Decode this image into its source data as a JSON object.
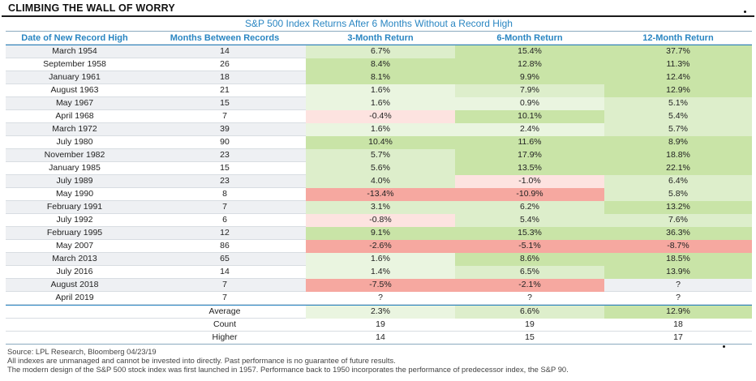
{
  "page_title": "CLIMBING THE WALL OF WORRY",
  "table_title": "S&P 500 Index Returns After 6 Months Without a Record High",
  "columns": [
    "Date of New Record High",
    "Months Between Records",
    "3-Month Return",
    "6-Month Return",
    "12-Month Return"
  ],
  "rows": [
    {
      "date": "March 1954",
      "months": "14",
      "r3": "6.7%",
      "r6": "15.4%",
      "r12": "37.7%"
    },
    {
      "date": "September 1958",
      "months": "26",
      "r3": "8.4%",
      "r6": "12.8%",
      "r12": "11.3%"
    },
    {
      "date": "January 1961",
      "months": "18",
      "r3": "8.1%",
      "r6": "9.9%",
      "r12": "12.4%"
    },
    {
      "date": "August 1963",
      "months": "21",
      "r3": "1.6%",
      "r6": "7.9%",
      "r12": "12.9%"
    },
    {
      "date": "May 1967",
      "months": "15",
      "r3": "1.6%",
      "r6": "0.9%",
      "r12": "5.1%"
    },
    {
      "date": "April 1968",
      "months": "7",
      "r3": "-0.4%",
      "r6": "10.1%",
      "r12": "5.4%"
    },
    {
      "date": "March 1972",
      "months": "39",
      "r3": "1.6%",
      "r6": "2.4%",
      "r12": "5.7%"
    },
    {
      "date": "July 1980",
      "months": "90",
      "r3": "10.4%",
      "r6": "11.6%",
      "r12": "8.9%"
    },
    {
      "date": "November 1982",
      "months": "23",
      "r3": "5.7%",
      "r6": "17.9%",
      "r12": "18.8%"
    },
    {
      "date": "January 1985",
      "months": "15",
      "r3": "5.6%",
      "r6": "13.5%",
      "r12": "22.1%"
    },
    {
      "date": "July 1989",
      "months": "23",
      "r3": "4.0%",
      "r6": "-1.0%",
      "r12": "6.4%"
    },
    {
      "date": "May 1990",
      "months": "8",
      "r3": "-13.4%",
      "r6": "-10.9%",
      "r12": "5.8%"
    },
    {
      "date": "February 1991",
      "months": "7",
      "r3": "3.1%",
      "r6": "6.2%",
      "r12": "13.2%"
    },
    {
      "date": "July 1992",
      "months": "6",
      "r3": "-0.8%",
      "r6": "5.4%",
      "r12": "7.6%"
    },
    {
      "date": "February 1995",
      "months": "12",
      "r3": "9.1%",
      "r6": "15.3%",
      "r12": "36.3%"
    },
    {
      "date": "May 2007",
      "months": "86",
      "r3": "-2.6%",
      "r6": "-5.1%",
      "r12": "-8.7%"
    },
    {
      "date": "March 2013",
      "months": "65",
      "r3": "1.6%",
      "r6": "8.6%",
      "r12": "18.5%"
    },
    {
      "date": "July 2016",
      "months": "14",
      "r3": "1.4%",
      "r6": "6.5%",
      "r12": "13.9%"
    },
    {
      "date": "August 2018",
      "months": "7",
      "r3": "-7.5%",
      "r6": "-2.1%",
      "r12": "?"
    },
    {
      "date": "April 2019",
      "months": "7",
      "r3": "?",
      "r6": "?",
      "r12": "?"
    }
  ],
  "summary": [
    {
      "label": "Average",
      "r3": "2.3%",
      "r6": "6.6%",
      "r12": "12.9%"
    },
    {
      "label": "Count",
      "r3": "19",
      "r6": "19",
      "r12": "18"
    },
    {
      "label": "Higher",
      "r3": "14",
      "r6": "15",
      "r12": "17"
    }
  ],
  "footnotes": [
    "Source: LPL Research, Bloomberg  04/23/19",
    "All indexes are unmanaged and cannot be invested into directly. Past performance is no guarantee of future results.",
    "The modern design of the S&P 500 stock index was first launched in 1957. Performance back to 1950 incorporates the performance of predecessor index, the S&P 90."
  ],
  "colors": {
    "header_text": "#2a86c2",
    "positive": "#c9e4a7",
    "negative": "#f6a8a0"
  }
}
